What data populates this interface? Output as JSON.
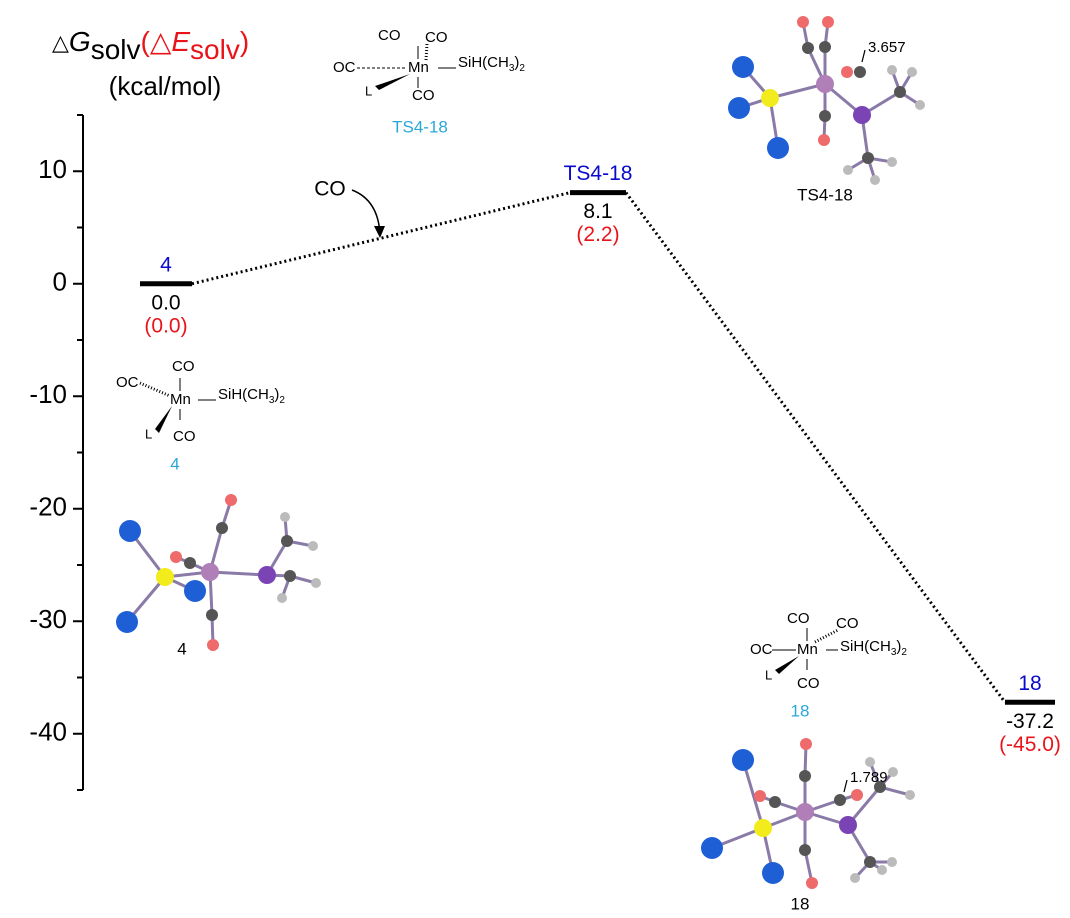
{
  "chart_data": {
    "type": "energy-profile",
    "ylabel": {
      "delta_g": "△",
      "g": "G",
      "g_sub": "solv",
      "open": "(△",
      "e": "E",
      "e_sub": "solv",
      "close": ")"
    },
    "yunit": "(kcal/mol)",
    "ylim": [
      -45,
      15
    ],
    "yticks": [
      10,
      0,
      -10,
      -20,
      -30,
      -40
    ],
    "minor_yticks": [
      15,
      5,
      -5,
      -15,
      -25,
      -35,
      -45
    ],
    "categories": [
      "4",
      "TS4-18",
      "18"
    ],
    "label_color": "#0a0acc",
    "series": [
      {
        "color": "#000000",
        "values": [
          0,
          8.1,
          -37.2
        ],
        "value_labels": [
          "0.0",
          "8.1",
          "-37.2"
        ]
      },
      {
        "color": "#e8141a",
        "values": [
          0,
          2.2,
          -45
        ],
        "value_labels": [
          "(0.0)",
          "(2.2)",
          "(-45.0)"
        ]
      }
    ],
    "annotation": "CO",
    "structures": [
      {
        "caption": "TS4-18",
        "co": [
          "CO",
          "CO",
          "CO"
        ],
        "oc": "OC",
        "metal": "Mn",
        "silyl": [
          "SiH(CH",
          "3",
          ")",
          "2"
        ],
        "ligand": "L"
      },
      {
        "caption": "4",
        "co": [
          "CO",
          "CO"
        ],
        "oc": "OC",
        "metal": "Mn",
        "silyl": [
          "SiH(CH",
          "3",
          ")",
          "2"
        ],
        "ligand": "L"
      },
      {
        "caption": "18",
        "co": [
          "CO",
          "CO",
          "CO"
        ],
        "oc": "OC",
        "metal": "Mn",
        "silyl": [
          "SiH(CH",
          "3",
          ")",
          "2"
        ],
        "ligand": "L"
      }
    ],
    "caption_color": "#2aa7d9",
    "molecules": [
      {
        "caption": "TS4-18",
        "distance": "3.657"
      },
      {
        "caption": "4"
      },
      {
        "caption": "18",
        "distance": "1.789"
      }
    ]
  }
}
